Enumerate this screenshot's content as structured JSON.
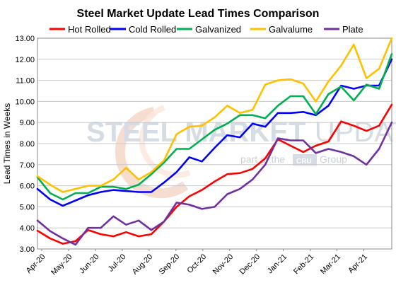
{
  "chart_data": {
    "type": "line",
    "title": "Steel Market Update Lead Times Comparison",
    "ylabel": "Lead Times in Weeks",
    "xlabel": "",
    "ylim": [
      3.0,
      13.0
    ],
    "yticks": [
      "3.00",
      "4.00",
      "5.00",
      "6.00",
      "7.00",
      "8.00",
      "9.00",
      "10.00",
      "11.00",
      "12.00",
      "13.00"
    ],
    "xticks": [
      "Apr-20",
      "May-20",
      "Jun-20",
      "Jul-20",
      "Aug-20",
      "Sep-20",
      "Oct-20",
      "Nov-20",
      "Dec-20",
      "Jan-21",
      "Feb-21",
      "Mar-21",
      "Apr-21"
    ],
    "grid": true,
    "legend_position": "top",
    "watermark": {
      "main_bold": "STEEL MARKET",
      "main_light": "UPDATE",
      "sub_left": "part of the",
      "sub_logo": "CRU",
      "sub_right": "Group"
    },
    "series": [
      {
        "name": "Hot Rolled",
        "color": "#ff0000",
        "values": [
          3.87,
          3.5,
          3.25,
          3.37,
          3.9,
          3.7,
          3.6,
          3.8,
          3.6,
          3.7,
          4.3,
          5.0,
          5.5,
          5.8,
          6.2,
          6.55,
          6.6,
          6.8,
          7.3,
          8.2,
          7.9,
          7.6,
          7.9,
          8.1,
          9.05,
          8.85,
          8.6,
          8.85,
          9.85
        ]
      },
      {
        "name": "Cold Rolled",
        "color": "#0000ff",
        "values": [
          5.85,
          5.35,
          5.05,
          5.3,
          5.55,
          5.7,
          5.8,
          5.75,
          5.7,
          5.7,
          6.15,
          6.65,
          7.35,
          7.15,
          7.8,
          8.4,
          8.3,
          8.95,
          8.8,
          9.45,
          9.45,
          9.5,
          9.35,
          9.8,
          10.75,
          10.6,
          10.75,
          10.75,
          12.0
        ]
      },
      {
        "name": "Galvanized",
        "color": "#00b050",
        "values": [
          6.4,
          5.65,
          5.35,
          5.65,
          5.65,
          5.95,
          5.95,
          5.85,
          6.05,
          6.55,
          7.1,
          7.75,
          7.75,
          8.2,
          8.65,
          8.95,
          9.35,
          9.35,
          9.2,
          9.8,
          10.25,
          10.25,
          9.4,
          10.35,
          10.7,
          10.05,
          10.8,
          10.6,
          12.25
        ]
      },
      {
        "name": "Galvalume",
        "color": "#ffc000",
        "values": [
          6.45,
          6.05,
          5.7,
          5.85,
          6.0,
          6.0,
          6.3,
          6.85,
          6.3,
          6.65,
          7.2,
          8.45,
          8.8,
          8.85,
          9.25,
          9.8,
          9.45,
          9.6,
          10.8,
          11.0,
          11.05,
          10.85,
          10.0,
          10.95,
          11.7,
          12.7,
          11.1,
          11.55,
          13.0
        ]
      },
      {
        "name": "Plate",
        "color": "#7030a0",
        "values": [
          4.35,
          3.85,
          3.5,
          3.2,
          4.0,
          4.0,
          4.55,
          4.15,
          4.35,
          3.9,
          4.3,
          5.2,
          5.1,
          4.9,
          5.0,
          5.6,
          5.85,
          6.3,
          7.0,
          8.25,
          8.15,
          8.15,
          7.55,
          7.75,
          7.6,
          7.4,
          7.0,
          7.75,
          9.0
        ]
      }
    ]
  }
}
